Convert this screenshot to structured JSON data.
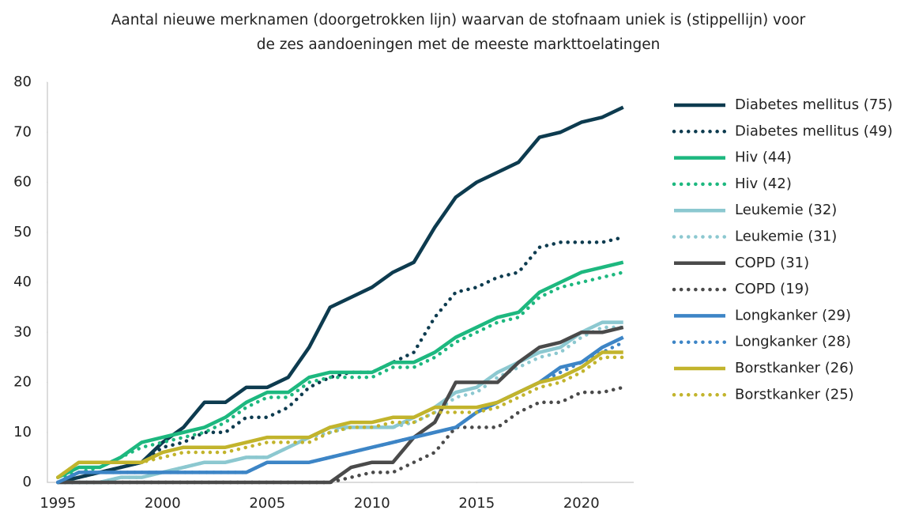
{
  "chart_data": {
    "type": "line",
    "title": "Aantal nieuwe merknamen (doorgetrokken lijn) waarvan de stofnaam uniek is (stippellijn) voor de zes aandoeningen met de meeste markttoelatingen",
    "x": [
      1995,
      1996,
      1997,
      1998,
      1999,
      2000,
      2001,
      2002,
      2003,
      2004,
      2005,
      2006,
      2007,
      2008,
      2009,
      2010,
      2011,
      2012,
      2013,
      2014,
      2015,
      2016,
      2017,
      2018,
      2019,
      2020,
      2021,
      2022
    ],
    "xlim": [
      1994.5,
      2022.5
    ],
    "xticks": [
      1995,
      2000,
      2005,
      2010,
      2015,
      2020
    ],
    "ylim": [
      0,
      80
    ],
    "yticks": [
      0,
      10,
      20,
      30,
      40,
      50,
      60,
      70,
      80
    ],
    "grid": false,
    "legend": "right",
    "series": [
      {
        "name": "Diabetes mellitus (75)",
        "color": "#0d3b4f",
        "line_style": "solid",
        "values": [
          0,
          1,
          2,
          3,
          4,
          8,
          11,
          16,
          16,
          19,
          19,
          21,
          27,
          35,
          37,
          39,
          42,
          44,
          51,
          57,
          60,
          62,
          64,
          69,
          70,
          72,
          73,
          75
        ]
      },
      {
        "name": "Diabetes mellitus (49)",
        "color": "#0d3b4f",
        "line_style": "dotted",
        "values": [
          0,
          1,
          2,
          3,
          4,
          7,
          8,
          10,
          10,
          13,
          13,
          15,
          19,
          21,
          22,
          22,
          24,
          26,
          33,
          38,
          39,
          41,
          42,
          47,
          48,
          48,
          48,
          49
        ]
      },
      {
        "name": "Hiv (44)",
        "color": "#1db87f",
        "line_style": "solid",
        "values": [
          1,
          3,
          3,
          5,
          8,
          9,
          10,
          11,
          13,
          16,
          18,
          18,
          21,
          22,
          22,
          22,
          24,
          24,
          26,
          29,
          31,
          33,
          34,
          38,
          40,
          42,
          43,
          44
        ]
      },
      {
        "name": "Hiv (42)",
        "color": "#1db87f",
        "line_style": "dotted",
        "values": [
          1,
          2,
          3,
          5,
          7,
          8,
          9,
          10,
          12,
          15,
          17,
          17,
          20,
          21,
          21,
          21,
          23,
          23,
          25,
          28,
          30,
          32,
          33,
          37,
          39,
          40,
          41,
          42
        ]
      },
      {
        "name": "Leukemie (32)",
        "color": "#8cc8d0",
        "line_style": "solid",
        "values": [
          0,
          0,
          0,
          1,
          1,
          2,
          3,
          4,
          4,
          5,
          5,
          7,
          9,
          11,
          11,
          11,
          11,
          13,
          15,
          18,
          19,
          22,
          24,
          26,
          27,
          30,
          32,
          32
        ]
      },
      {
        "name": "Leukemie (31)",
        "color": "#8cc8d0",
        "line_style": "dotted",
        "values": [
          0,
          0,
          0,
          1,
          1,
          2,
          3,
          4,
          4,
          5,
          5,
          7,
          9,
          10,
          11,
          11,
          11,
          12,
          14,
          17,
          18,
          21,
          23,
          25,
          26,
          29,
          31,
          31
        ]
      },
      {
        "name": "COPD (31)",
        "color": "#4a4a4a",
        "line_style": "solid",
        "values": [
          0,
          0,
          0,
          0,
          0,
          0,
          0,
          0,
          0,
          0,
          0,
          0,
          0,
          0,
          3,
          4,
          4,
          9,
          12,
          20,
          20,
          20,
          24,
          27,
          28,
          30,
          30,
          31
        ]
      },
      {
        "name": "COPD (19)",
        "color": "#4a4a4a",
        "line_style": "dotted",
        "values": [
          0,
          0,
          0,
          0,
          0,
          0,
          0,
          0,
          0,
          0,
          0,
          0,
          0,
          0,
          1,
          2,
          2,
          4,
          6,
          11,
          11,
          11,
          14,
          16,
          16,
          18,
          18,
          19
        ]
      },
      {
        "name": "Longkanker (29)",
        "color": "#3d85c6",
        "line_style": "solid",
        "values": [
          0,
          2,
          2,
          2,
          2,
          2,
          2,
          2,
          2,
          2,
          4,
          4,
          4,
          5,
          6,
          7,
          8,
          9,
          10,
          11,
          14,
          16,
          18,
          20,
          23,
          24,
          27,
          29
        ]
      },
      {
        "name": "Longkanker (28)",
        "color": "#3d85c6",
        "line_style": "dotted",
        "values": [
          0,
          2,
          2,
          2,
          2,
          2,
          2,
          2,
          2,
          2,
          4,
          4,
          4,
          5,
          6,
          7,
          8,
          9,
          10,
          11,
          14,
          16,
          18,
          20,
          22,
          24,
          26,
          28
        ]
      },
      {
        "name": "Borstkanker (26)",
        "color": "#c2b42c",
        "line_style": "solid",
        "values": [
          1,
          4,
          4,
          4,
          4,
          6,
          7,
          7,
          7,
          8,
          9,
          9,
          9,
          11,
          12,
          12,
          13,
          13,
          15,
          15,
          15,
          16,
          18,
          20,
          21,
          23,
          26,
          26
        ]
      },
      {
        "name": "Borstkanker (25)",
        "color": "#c2b42c",
        "line_style": "dotted",
        "values": [
          1,
          4,
          4,
          4,
          4,
          5,
          6,
          6,
          6,
          7,
          8,
          8,
          8,
          10,
          11,
          11,
          12,
          12,
          14,
          14,
          14,
          15,
          17,
          19,
          20,
          22,
          25,
          25
        ]
      }
    ]
  }
}
